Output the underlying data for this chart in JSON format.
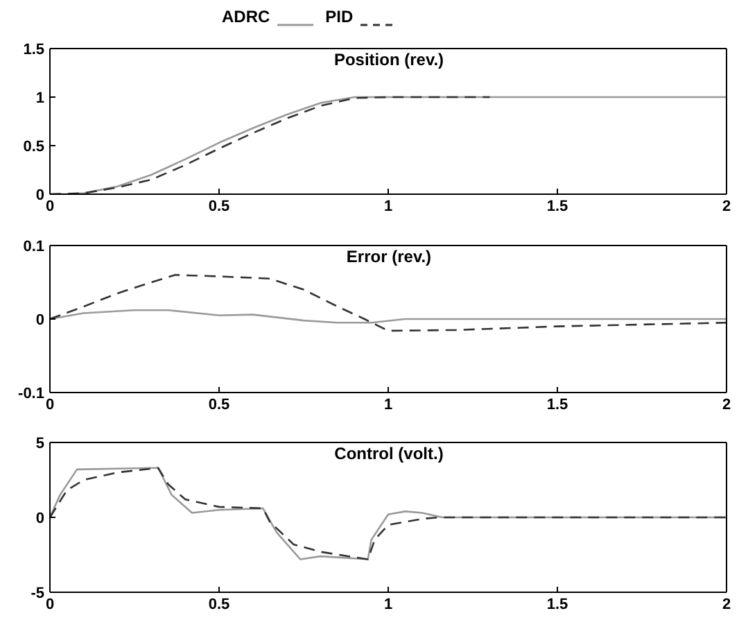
{
  "chart_data": [
    {
      "type": "line",
      "title": "Position (rev.)",
      "legend": "top",
      "marker": "none",
      "xlim": [
        0,
        2
      ],
      "xticks": [
        0,
        0.5,
        1,
        1.5,
        2
      ],
      "ylim": [
        0,
        1.5
      ],
      "yticks": [
        0,
        0.5,
        1,
        1.5
      ],
      "series": [
        {
          "name": "ADRC",
          "color": "#9a9a9a",
          "line_style": "solid",
          "x": [
            0,
            0.05,
            0.1,
            0.2,
            0.3,
            0.4,
            0.5,
            0.6,
            0.7,
            0.8,
            0.9,
            1.0,
            2.0
          ],
          "values": [
            0,
            0,
            0.01,
            0.08,
            0.2,
            0.36,
            0.53,
            0.68,
            0.82,
            0.94,
            1.0,
            1.0,
            1.0
          ]
        },
        {
          "name": "PID",
          "color": "#333333",
          "line_style": "dashed",
          "x": [
            0,
            0.1,
            0.2,
            0.3,
            0.4,
            0.5,
            0.6,
            0.7,
            0.8,
            0.9,
            1.0,
            1.3
          ],
          "values": [
            0,
            0.01,
            0.07,
            0.15,
            0.3,
            0.47,
            0.63,
            0.78,
            0.91,
            0.99,
            1.0,
            1.0
          ]
        }
      ]
    },
    {
      "type": "line",
      "title": "Error (rev.)",
      "marker": "none",
      "xlim": [
        0,
        2
      ],
      "xticks": [
        0,
        0.5,
        1,
        1.5,
        2
      ],
      "ylim": [
        -0.1,
        0.1
      ],
      "yticks": [
        -0.1,
        0,
        0.1
      ],
      "series": [
        {
          "color": "#9a9a9a",
          "line_style": "solid",
          "x": [
            0,
            0.1,
            0.25,
            0.35,
            0.5,
            0.6,
            0.75,
            0.85,
            0.95,
            1.05,
            2.0
          ],
          "values": [
            0,
            0.008,
            0.012,
            0.012,
            0.005,
            0.006,
            -0.002,
            -0.005,
            -0.005,
            0,
            0
          ]
        },
        {
          "color": "#333333",
          "line_style": "dashed",
          "x": [
            0,
            0.1,
            0.2,
            0.3,
            0.37,
            0.5,
            0.65,
            0.75,
            0.85,
            0.93,
            1.0,
            1.2,
            1.5,
            2.0
          ],
          "values": [
            0,
            0.017,
            0.035,
            0.05,
            0.06,
            0.058,
            0.055,
            0.04,
            0.017,
            0,
            -0.016,
            -0.015,
            -0.01,
            -0.005
          ]
        }
      ]
    },
    {
      "type": "line",
      "title": "Control (volt.)",
      "marker": "none",
      "xlim": [
        0,
        2
      ],
      "xticks": [
        0,
        0.5,
        1,
        1.5,
        2
      ],
      "ylim": [
        -5,
        5
      ],
      "yticks": [
        -5,
        0,
        5
      ],
      "series": [
        {
          "color": "#9a9a9a",
          "line_style": "solid",
          "x": [
            0,
            0.03,
            0.08,
            0.3,
            0.32,
            0.36,
            0.42,
            0.5,
            0.63,
            0.67,
            0.74,
            0.8,
            0.94,
            0.95,
            1.0,
            1.05,
            1.1,
            1.16,
            2.0
          ],
          "values": [
            0,
            1.5,
            3.2,
            3.3,
            3.3,
            1.5,
            0.3,
            0.5,
            0.6,
            -1.0,
            -2.8,
            -2.6,
            -2.8,
            -1.5,
            0.2,
            0.4,
            0.3,
            0,
            0
          ]
        },
        {
          "color": "#333333",
          "line_style": "dashed",
          "x": [
            0,
            0.05,
            0.1,
            0.2,
            0.32,
            0.35,
            0.4,
            0.5,
            0.63,
            0.65,
            0.72,
            0.8,
            0.94,
            0.96,
            1.0,
            1.1,
            1.15,
            2.0
          ],
          "values": [
            0,
            1.8,
            2.5,
            3.0,
            3.3,
            2.2,
            1.2,
            0.7,
            0.6,
            -0.3,
            -1.8,
            -2.3,
            -2.8,
            -1.5,
            -0.5,
            -0.1,
            0,
            0
          ]
        }
      ]
    }
  ]
}
